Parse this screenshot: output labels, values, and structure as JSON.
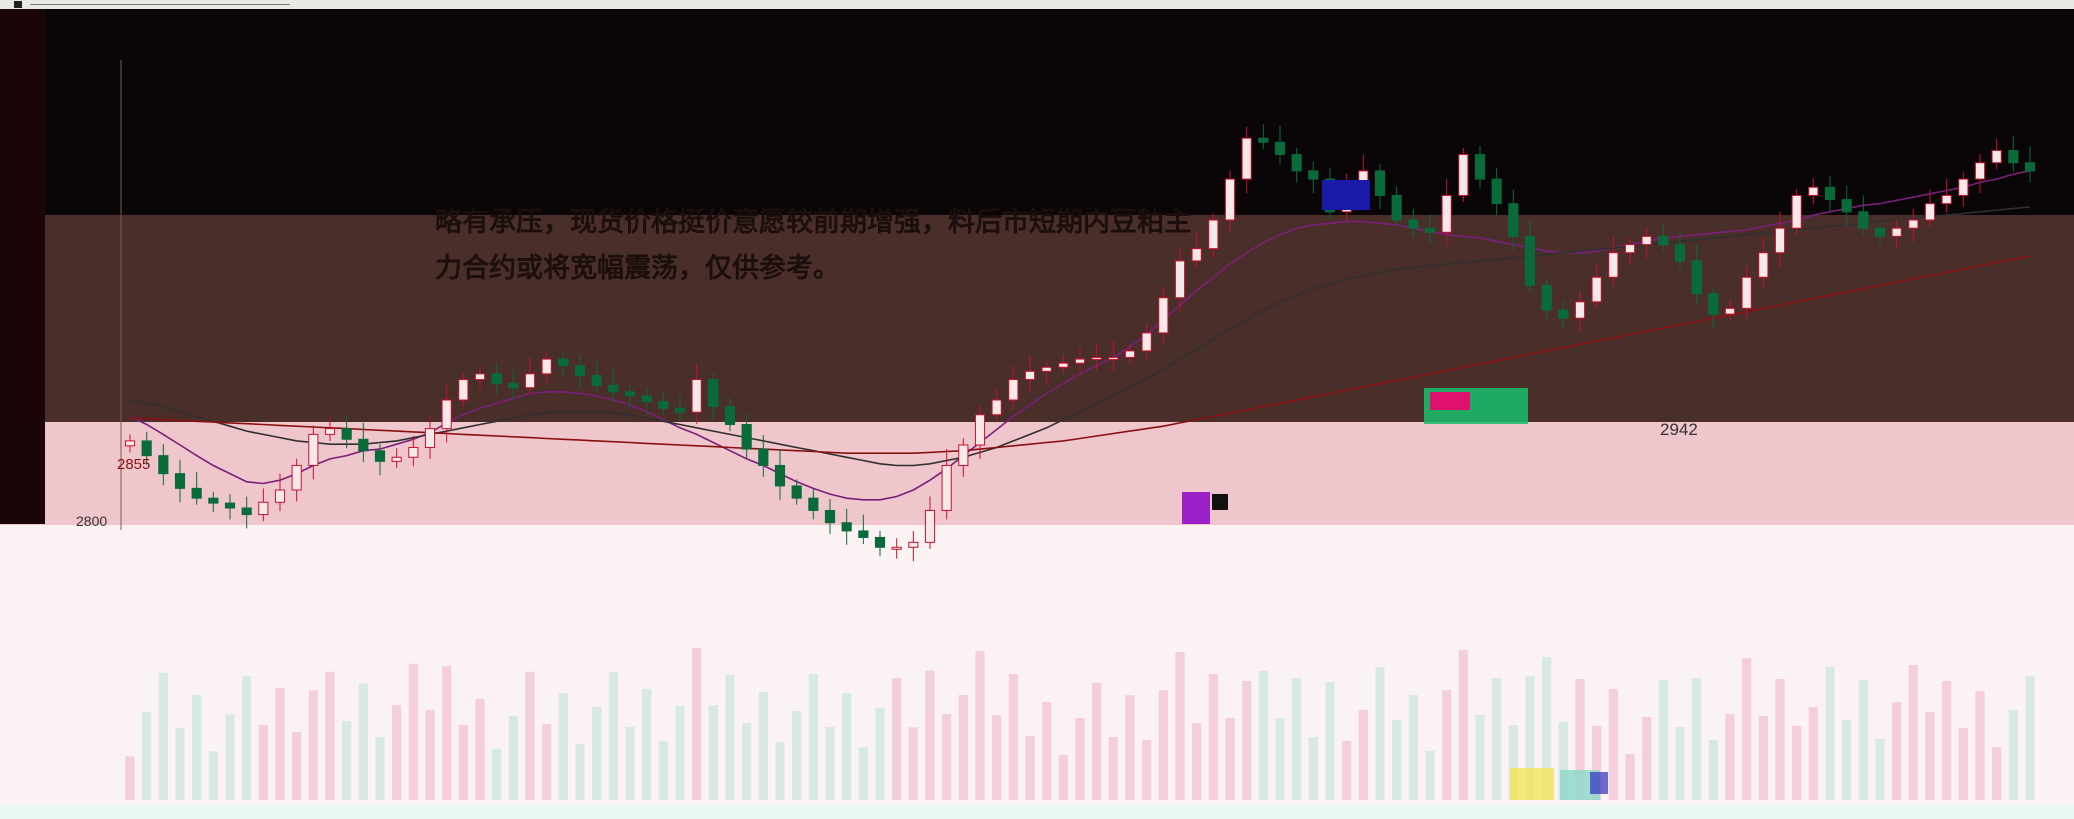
{
  "chart_data": {
    "type": "candlestick",
    "title": "",
    "annotation_lines": [
      "略有承压，现货价格挺价意愿较前期增强，料后市短期内豆粕主",
      "力合约或将宽幅震荡，仅供参考。"
    ],
    "price_labels": [
      "2855",
      "2800",
      "2942"
    ],
    "price_range": [
      2660,
      3320
    ],
    "series": [
      {
        "name": "",
        "values": [
          2830,
          2812,
          2790,
          2772,
          2760,
          2754,
          2748,
          2740,
          2755,
          2770,
          2800,
          2838,
          2845,
          2832,
          2818,
          2805,
          2810,
          2822,
          2845,
          2880,
          2905,
          2912,
          2900,
          2895,
          2912,
          2930,
          2922,
          2910,
          2898,
          2890,
          2885,
          2878,
          2870,
          2865,
          2905,
          2872,
          2850,
          2820,
          2800,
          2775,
          2760,
          2745,
          2730,
          2720,
          2712,
          2700,
          2700,
          2706,
          2745,
          2800,
          2825,
          2862,
          2880,
          2905,
          2915,
          2920,
          2925,
          2930,
          2932,
          2932,
          2940,
          2962,
          3005,
          3050,
          3065,
          3100,
          3150,
          3200,
          3195,
          3180,
          3160,
          3150,
          3110,
          3140,
          3160,
          3130,
          3100,
          3090,
          3085,
          3130,
          3180,
          3150,
          3120,
          3080,
          3020,
          2990,
          2980,
          3000,
          3030,
          3060,
          3070,
          3080,
          3070,
          3050,
          3010,
          2985,
          2992,
          3030,
          3060,
          3090,
          3130,
          3140,
          3125,
          3110,
          3090,
          3080,
          3090,
          3100,
          3120,
          3130,
          3150,
          3170,
          3185,
          3170,
          3160
        ]
      },
      {
        "name": "",
        "values": [
          2860,
          2850,
          2838,
          2825,
          2812,
          2800,
          2790,
          2780,
          2778,
          2782,
          2790,
          2800,
          2808,
          2812,
          2818,
          2820,
          2826,
          2832,
          2840,
          2852,
          2862,
          2870,
          2876,
          2882,
          2888,
          2890,
          2890,
          2888,
          2885,
          2880,
          2874,
          2866,
          2856,
          2846,
          2838,
          2828,
          2818,
          2808,
          2800,
          2790,
          2780,
          2772,
          2765,
          2760,
          2758,
          2758,
          2762,
          2770,
          2782,
          2796,
          2812,
          2828,
          2844,
          2860,
          2874,
          2888,
          2900,
          2912,
          2922,
          2932,
          2945,
          2960,
          2978,
          2996,
          3014,
          3030,
          3046,
          3060,
          3072,
          3082,
          3090,
          3094,
          3096,
          3098,
          3098,
          3096,
          3094,
          3090,
          3086,
          3082,
          3080,
          3078,
          3074,
          3070,
          3066,
          3062,
          3060,
          3060,
          3062,
          3066,
          3070,
          3074,
          3078,
          3080,
          3082,
          3084,
          3086,
          3088,
          3092,
          3096,
          3100,
          3106,
          3110,
          3114,
          3118,
          3120,
          3124,
          3128,
          3132,
          3136,
          3140,
          3146,
          3150,
          3156,
          3160
        ]
      },
      {
        "name": "",
        "values": [
          2880,
          2876,
          2872,
          2866,
          2860,
          2854,
          2848,
          2842,
          2838,
          2834,
          2830,
          2828,
          2826,
          2826,
          2826,
          2828,
          2830,
          2834,
          2838,
          2842,
          2846,
          2850,
          2854,
          2858,
          2862,
          2864,
          2866,
          2866,
          2866,
          2864,
          2862,
          2858,
          2854,
          2850,
          2846,
          2842,
          2838,
          2834,
          2830,
          2826,
          2822,
          2818,
          2814,
          2810,
          2806,
          2802,
          2800,
          2800,
          2802,
          2806,
          2810,
          2816,
          2822,
          2830,
          2838,
          2846,
          2856,
          2866,
          2876,
          2886,
          2896,
          2906,
          2918,
          2930,
          2942,
          2954,
          2966,
          2978,
          2990,
          3000,
          3008,
          3016,
          3022,
          3028,
          3032,
          3036,
          3040,
          3042,
          3044,
          3046,
          3048,
          3050,
          3052,
          3054,
          3056,
          3058,
          3060,
          3062,
          3064,
          3066,
          3068,
          3070,
          3072,
          3074,
          3076,
          3078,
          3080,
          3082,
          3084,
          3086,
          3088,
          3090,
          3092,
          3094,
          3096,
          3098,
          3100,
          3102,
          3104,
          3106,
          3108,
          3110,
          3112,
          3114,
          3116
        ]
      },
      {
        "name": "",
        "values": [
          2858,
          2857,
          2856,
          2855,
          2854,
          2853,
          2852,
          2851,
          2850,
          2849,
          2848,
          2847,
          2846,
          2845,
          2844,
          2843,
          2842,
          2841,
          2840,
          2839,
          2838,
          2837,
          2836,
          2835,
          2834,
          2833,
          2832,
          2831,
          2830,
          2829,
          2828,
          2827,
          2826,
          2825,
          2824,
          2823,
          2822,
          2821,
          2820,
          2819,
          2818,
          2817,
          2816,
          2815,
          2815,
          2815,
          2815,
          2815,
          2816,
          2817,
          2818,
          2820,
          2822,
          2824,
          2826,
          2828,
          2830,
          2833,
          2836,
          2839,
          2842,
          2845,
          2848,
          2852,
          2856,
          2860,
          2864,
          2868,
          2872,
          2876,
          2880,
          2884,
          2888,
          2892,
          2896,
          2900,
          2904,
          2908,
          2912,
          2916,
          2920,
          2924,
          2928,
          2932,
          2936,
          2940,
          2944,
          2948,
          2952,
          2956,
          2960,
          2964,
          2968,
          2972,
          2976,
          2980,
          2984,
          2988,
          2992,
          2996,
          3000,
          3004,
          3008,
          3012,
          3016,
          3020,
          3024,
          3028,
          3032,
          3036,
          3040,
          3044,
          3048,
          3052,
          3056
        ]
      }
    ],
    "colors": {
      "up": "#c8102e",
      "down": "#0a6b3a",
      "ma_short": "#222222",
      "ma_mid": "#7a1f7a",
      "ma_long": "#303030",
      "ma_trend": "#8a1010"
    },
    "grid": false,
    "legend": "none"
  }
}
